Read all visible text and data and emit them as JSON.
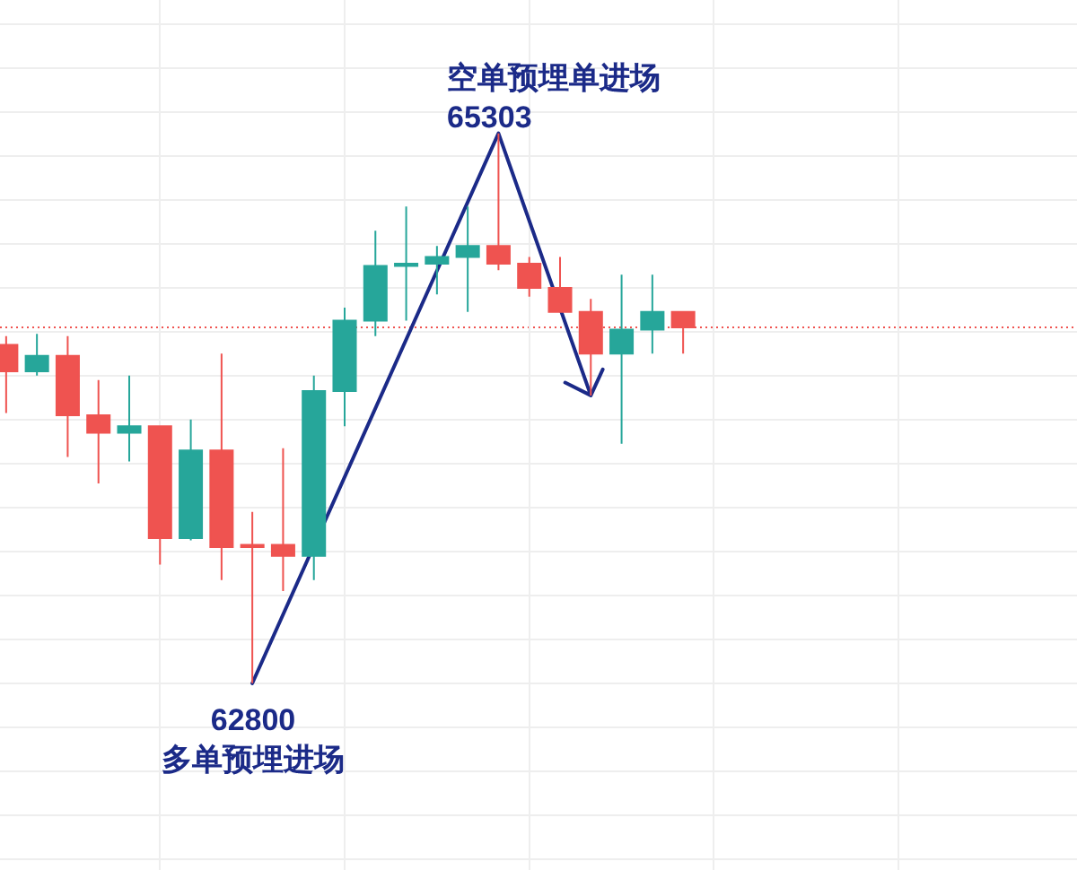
{
  "chart_data": {
    "type": "candlestick",
    "categories": [
      null,
      null,
      null,
      null,
      null,
      null,
      null,
      null,
      null,
      null,
      null,
      null,
      null,
      null,
      null,
      null,
      null,
      null,
      null,
      null,
      null,
      null,
      null
    ],
    "ohlc": [
      [
        64340,
        64380,
        64030,
        64220
      ],
      [
        64220,
        64390,
        64200,
        64290
      ],
      [
        64290,
        64380,
        63830,
        64020
      ],
      [
        64020,
        64180,
        63710,
        63940
      ],
      [
        63940,
        64200,
        63810,
        63970
      ],
      [
        63970,
        63970,
        63340,
        63460
      ],
      [
        63460,
        64000,
        63450,
        63860
      ],
      [
        63860,
        64300,
        63270,
        63420
      ],
      [
        63430,
        63580,
        62800,
        63420
      ],
      [
        63430,
        63870,
        63220,
        63380
      ],
      [
        63380,
        64200,
        63270,
        64130
      ],
      [
        64130,
        64510,
        63970,
        64450
      ],
      [
        64450,
        64860,
        64380,
        64700
      ],
      [
        64700,
        64970,
        64450,
        64710
      ],
      [
        64710,
        64790,
        64570,
        64740
      ],
      [
        64740,
        64970,
        64490,
        64790
      ],
      [
        64790,
        65303,
        64680,
        64710
      ],
      [
        64710,
        64740,
        64560,
        64600
      ],
      [
        64600,
        64740,
        64490,
        64490
      ],
      [
        64490,
        64550,
        64110,
        64300
      ],
      [
        64300,
        64660,
        63890,
        64410
      ],
      [
        64410,
        64660,
        64300,
        64490
      ],
      [
        64490,
        64490,
        64300,
        64420
      ]
    ],
    "colors": [
      "#ef5350",
      "#26a69a",
      "#ef5350",
      "#ef5350",
      "#26a69a",
      "#ef5350",
      "#26a69a",
      "#ef5350",
      "#ef5350",
      "#ef5350",
      "#26a69a",
      "#26a69a",
      "#26a69a",
      "#26a69a",
      "#26a69a",
      "#26a69a",
      "#ef5350",
      "#ef5350",
      "#ef5350",
      "#ef5350",
      "#26a69a",
      "#26a69a",
      "#ef5350"
    ],
    "ylim": [
      61950,
      65910
    ],
    "yticks": [
      62000,
      62200,
      62400,
      62600,
      62800,
      63000,
      63200,
      63400,
      63600,
      63800,
      64000,
      64200,
      64400,
      64600,
      64800,
      65000,
      65200,
      65400,
      65600,
      65800
    ],
    "tick_labels": false,
    "grid": true,
    "ref_lines": [
      {
        "axis": "y",
        "value": 64420,
        "color": "#ef5350",
        "line_style": "dotted"
      }
    ],
    "annotations": [
      "空单预埋单进场\n65303",
      "62800\n多单预埋进场"
    ]
  }
}
